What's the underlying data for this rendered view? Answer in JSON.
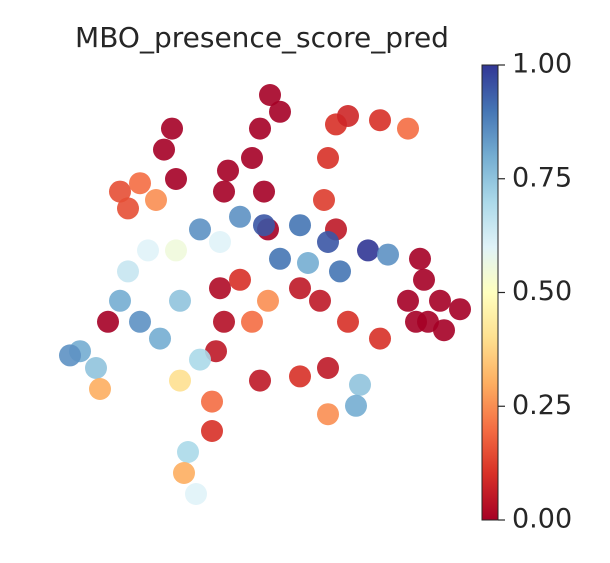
{
  "chart_data": {
    "type": "scatter",
    "title": "MBO_presence_score_pred",
    "colormap": "RdYlBu",
    "x": [
      52.5,
      55,
      50,
      48,
      51,
      52,
      28,
      26,
      29,
      42,
      41,
      69,
      72,
      80,
      87,
      67,
      66,
      69,
      15,
      20,
      24,
      17,
      91,
      95,
      92,
      89,
      96,
      87,
      90,
      100,
      45,
      51,
      60,
      67,
      77,
      82,
      55,
      62,
      70,
      40,
      35,
      17,
      22,
      29,
      15,
      20,
      25,
      30,
      40,
      41,
      39,
      45,
      48,
      52,
      60,
      65,
      72,
      5,
      9,
      10,
      12,
      2.5,
      30,
      35,
      38,
      50,
      60,
      67,
      75,
      74,
      67,
      32,
      31,
      34,
      38,
      80
    ],
    "y": [
      100,
      96,
      92,
      85,
      77,
      68,
      92,
      87,
      80,
      82,
      77,
      93,
      95,
      94,
      92,
      85,
      75,
      68,
      77,
      79,
      75,
      73,
      56,
      51,
      46,
      46,
      44,
      51,
      61,
      49,
      71,
      69,
      69,
      65,
      63,
      62,
      61,
      60,
      58,
      65,
      68,
      58,
      63,
      63,
      51,
      46,
      42,
      51,
      54,
      46,
      39,
      56,
      46,
      51,
      54,
      51,
      46,
      39,
      35,
      30,
      46,
      38,
      32,
      37,
      27,
      32,
      33,
      35,
      31,
      26,
      24,
      15,
      10,
      5,
      20,
      42
    ],
    "values": [
      0,
      0,
      0,
      0,
      0,
      0,
      0,
      0,
      0,
      0,
      0,
      0.1,
      0.08,
      0.1,
      0.2,
      0.1,
      0.12,
      0.05,
      0.15,
      0.2,
      0.25,
      0.15,
      0,
      0,
      0,
      0,
      0,
      0,
      0,
      0,
      0.85,
      0.95,
      0.9,
      0.95,
      1,
      0.85,
      0.9,
      0.8,
      0.9,
      0.6,
      0.85,
      0.65,
      0.6,
      0.55,
      0.8,
      0.85,
      0.8,
      0.75,
      0.02,
      0.03,
      0.05,
      0.1,
      0.2,
      0.25,
      0.05,
      0.05,
      0.1,
      0.8,
      0.75,
      0.3,
      0,
      0.85,
      0.4,
      0.7,
      0.2,
      0.05,
      0.1,
      0.05,
      0.75,
      0.8,
      0.25,
      0.7,
      0.3,
      0.6,
      0.1,
      0.1
    ],
    "colorbar": {
      "lim": [
        0,
        1
      ],
      "ticks": [
        {
          "value": 0,
          "label": "0.00"
        },
        {
          "value": 0.25,
          "label": "0.25"
        },
        {
          "value": 0.5,
          "label": "0.50"
        },
        {
          "value": 0.75,
          "label": "0.75"
        },
        {
          "value": 1,
          "label": "1.00"
        }
      ]
    }
  }
}
